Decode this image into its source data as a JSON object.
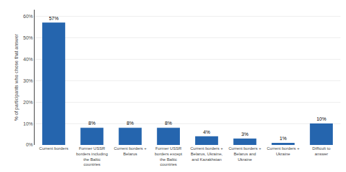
{
  "chart_data": {
    "type": "bar",
    "categories": [
      "Current borders",
      "Former USSR\nborders including\nthe Baltic\ncountries",
      "Current borders +\nBelarus",
      "Former USSR\nborders except\nthe Baltic\ncountries",
      "Current borders +\nBelarus, Ukraine,\nand Kazakhstan",
      "Current borders +\nBelarus and\nUkraine",
      "Current borders +\nUkraine",
      "Difficult to\nanswer"
    ],
    "values": [
      57,
      8,
      8,
      8,
      4,
      3,
      1,
      10
    ],
    "value_labels": [
      "57%",
      "8%",
      "8%",
      "8%",
      "4%",
      "3%",
      "1%",
      "10%"
    ],
    "data_labels": true,
    "color": "#2565ae",
    "ylabel": "% of participants who chose that answer",
    "ylim": [
      0,
      63
    ],
    "yticks": [
      {
        "value": 0,
        "label": "0%"
      },
      {
        "value": 10,
        "label": "10%"
      },
      {
        "value": 20,
        "label": "20%"
      },
      {
        "value": 30,
        "label": "30%"
      },
      {
        "value": 40,
        "label": "40%"
      },
      {
        "value": 50,
        "label": "50%"
      },
      {
        "value": 60,
        "label": "60%"
      }
    ],
    "grid": true
  }
}
